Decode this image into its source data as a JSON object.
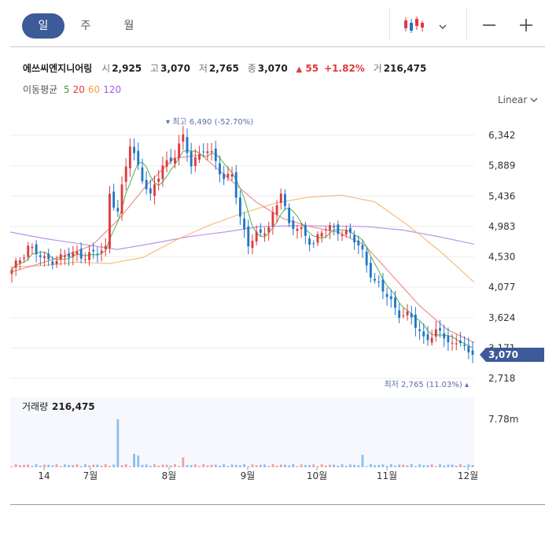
{
  "tabs": [
    {
      "label": "일",
      "active": true
    },
    {
      "label": "주",
      "active": false
    },
    {
      "label": "월",
      "active": false
    }
  ],
  "toolbar": {
    "chart_type_icon": "candlestick-icon",
    "dropdown_icon": "chevron-down-icon",
    "zoom_out_icon": "minus-icon",
    "zoom_in_icon": "plus-icon"
  },
  "stock": {
    "name": "에쓰씨엔지니어링",
    "open_label": "시",
    "open": "2,925",
    "high_label": "고",
    "high": "3,070",
    "low_label": "저",
    "low": "2,765",
    "close_label": "종",
    "close": "3,070",
    "change": "55",
    "change_pct": "+1.82%",
    "volume_label": "거",
    "volume": "216,475"
  },
  "moving_average": {
    "label": "이동평균",
    "periods": [
      {
        "label": "5",
        "color": "#3a9a3a"
      },
      {
        "label": "20",
        "color": "#e0393e"
      },
      {
        "label": "60",
        "color": "#f0a040"
      },
      {
        "label": "120",
        "color": "#9b5de5"
      }
    ]
  },
  "scale_button": {
    "label": "Linear"
  },
  "colors": {
    "up": "#e0393e",
    "down": "#1f77c8",
    "accent": "#3d5a99",
    "grid": "#eeeeee"
  },
  "chart_data": {
    "type": "candlestick",
    "price_axis_ticks": [
      "6,342",
      "5,889",
      "5,436",
      "4,983",
      "4,530",
      "4,077",
      "3,624",
      "3,171",
      "2,718"
    ],
    "price_ylim": [
      2718,
      6342
    ],
    "x_tick_labels": [
      "14",
      "7월",
      "8월",
      "9월",
      "10월",
      "11월",
      "12월"
    ],
    "current_price_label": "3,070",
    "max_annotation": "최고 6,490 (-52.70%)",
    "min_annotation": "최저 2,765 (11.03%)",
    "volume_title": "거래량",
    "volume_value": "216,475",
    "volume_axis_tick": "7.78m",
    "anchors": [
      {
        "i": 0,
        "price": 4300
      },
      {
        "i": 4,
        "price": 4700
      },
      {
        "i": 8,
        "price": 4470
      },
      {
        "i": 12,
        "price": 4520
      },
      {
        "i": 16,
        "price": 4570
      },
      {
        "i": 20,
        "price": 4560
      },
      {
        "i": 23,
        "price": 4650
      },
      {
        "i": 24,
        "price": 5500
      },
      {
        "i": 26,
        "price": 5200
      },
      {
        "i": 29,
        "price": 6200
      },
      {
        "i": 31,
        "price": 5900
      },
      {
        "i": 34,
        "price": 5400
      },
      {
        "i": 37,
        "price": 5900
      },
      {
        "i": 40,
        "price": 6050
      },
      {
        "i": 42,
        "price": 6280
      },
      {
        "i": 44,
        "price": 5920
      },
      {
        "i": 47,
        "price": 6150
      },
      {
        "i": 50,
        "price": 5950
      },
      {
        "i": 52,
        "price": 5700
      },
      {
        "i": 54,
        "price": 5800
      },
      {
        "i": 56,
        "price": 5050
      },
      {
        "i": 58,
        "price": 4750
      },
      {
        "i": 60,
        "price": 4880
      },
      {
        "i": 63,
        "price": 4920
      },
      {
        "i": 66,
        "price": 5550
      },
      {
        "i": 68,
        "price": 5000
      },
      {
        "i": 71,
        "price": 4900
      },
      {
        "i": 74,
        "price": 4750
      },
      {
        "i": 77,
        "price": 4950
      },
      {
        "i": 80,
        "price": 4950
      },
      {
        "i": 83,
        "price": 4850
      },
      {
        "i": 86,
        "price": 4600
      },
      {
        "i": 89,
        "price": 4150
      },
      {
        "i": 92,
        "price": 3950
      },
      {
        "i": 95,
        "price": 3700
      },
      {
        "i": 98,
        "price": 3600
      },
      {
        "i": 101,
        "price": 3330
      },
      {
        "i": 104,
        "price": 3380
      },
      {
        "i": 106,
        "price": 3350
      },
      {
        "i": 108,
        "price": 3230
      },
      {
        "i": 110,
        "price": 3300
      },
      {
        "i": 112,
        "price": 3020
      },
      {
        "i": 113,
        "price": 3070
      }
    ],
    "ma120": [
      4900,
      4800,
      4720,
      4640,
      4730,
      4830,
      4900,
      4980,
      4995,
      4990,
      4980,
      4930,
      4830,
      4720
    ],
    "ma60": [
      4380,
      4400,
      4450,
      4430,
      4520,
      4780,
      5000,
      5180,
      5330,
      5420,
      5450,
      5350,
      5000,
      4600,
      4150
    ],
    "ma20": [
      4300,
      4420,
      4550,
      4700,
      5100,
      5600,
      6000,
      6050,
      5700,
      5350,
      5100,
      4980,
      4900,
      4700,
      4250,
      3800,
      3450,
      3250
    ],
    "volume_spikes": [
      {
        "i": 26,
        "value": 7.78
      },
      {
        "i": 30,
        "value": 2.2
      },
      {
        "i": 31,
        "value": 1.9
      },
      {
        "i": 42,
        "value": 1.6
      },
      {
        "i": 86,
        "value": 2.0
      }
    ]
  }
}
